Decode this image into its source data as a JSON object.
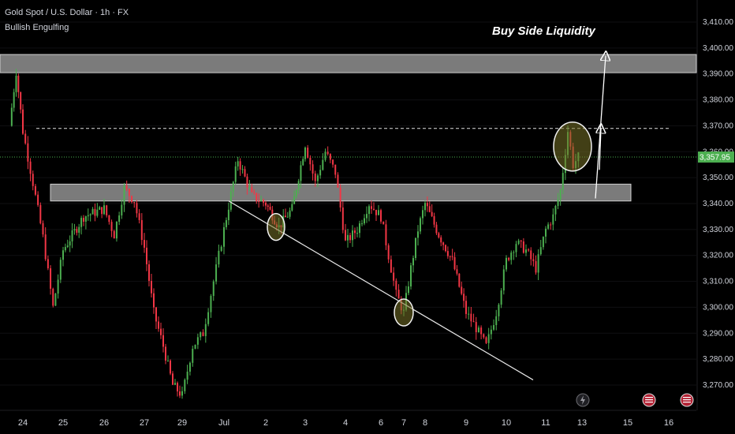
{
  "title": "Gold Spot / U.S. Dollar · 1h · FX",
  "indicator": "Bullish Engulfing",
  "annotation": "Buy Side Liquidity",
  "colors": {
    "background": "#000000",
    "up": "#4caf50",
    "down": "#f23645",
    "zone": "#9e9e9e",
    "last_price": "#4caf50"
  },
  "chart_data": {
    "type": "candlestick",
    "ylim": [
      3262,
      3414
    ],
    "yticks": [
      3270,
      3280,
      3290,
      3300,
      3310,
      3320,
      3330,
      3340,
      3350,
      3360,
      3370,
      3380,
      3390,
      3400,
      3410
    ],
    "ytick_labels": [
      "3,270.00",
      "3,280.00",
      "3,290.00",
      "3,300.00",
      "3,310.00",
      "3,320.00",
      "3,330.00",
      "3,340.00",
      "3,350.00",
      "3,360.00",
      "3,370.00",
      "3,380.00",
      "3,390.00",
      "3,400.00",
      "3,410.00"
    ],
    "x_labels": [
      "24",
      "25",
      "26",
      "27",
      "29",
      "Jul",
      "2",
      "3",
      "4",
      "6",
      "7",
      "8",
      "9",
      "10",
      "11",
      "13",
      "15",
      "16"
    ],
    "last_price": 3357.95,
    "last_price_label": "3,357.95",
    "zones": [
      {
        "from": 3390.5,
        "to": 3397.5,
        "start_label": "24",
        "extends_to_axis": true
      },
      {
        "from": 3341,
        "to": 3347.5,
        "start_label": "25",
        "end_label": "13"
      }
    ],
    "dashed_level": 3369,
    "trendline": {
      "from": {
        "label": "Jul",
        "price": 3341
      },
      "to": {
        "label": "13",
        "price": 3272
      }
    },
    "circles": [
      {
        "label": "2",
        "price": 3331
      },
      {
        "label": "7",
        "price": 3298
      },
      {
        "label": "12",
        "price": 3362
      }
    ],
    "arrows": [
      {
        "from": 3342,
        "to": 3397
      },
      {
        "from": 3353,
        "to": 3369
      }
    ],
    "price_path": [
      {
        "x": "23",
        "price": 3370
      },
      {
        "x": "23",
        "price": 3391
      },
      {
        "x": "24",
        "price": 3368
      },
      {
        "x": "24",
        "price": 3348
      },
      {
        "x": "24",
        "price": 3327
      },
      {
        "x": "24",
        "price": 3300
      },
      {
        "x": "25",
        "price": 3322
      },
      {
        "x": "25",
        "price": 3335
      },
      {
        "x": "26",
        "price": 3338
      },
      {
        "x": "26",
        "price": 3328
      },
      {
        "x": "26",
        "price": 3346
      },
      {
        "x": "26",
        "price": 3341
      },
      {
        "x": "27",
        "price": 3323
      },
      {
        "x": "27",
        "price": 3298
      },
      {
        "x": "27",
        "price": 3285
      },
      {
        "x": "27",
        "price": 3270
      },
      {
        "x": "29",
        "price": 3266
      },
      {
        "x": "29",
        "price": 3285
      },
      {
        "x": "29",
        "price": 3290
      },
      {
        "x": "29",
        "price": 3310
      },
      {
        "x": "Jul",
        "price": 3330
      },
      {
        "x": "Jul",
        "price": 3357
      },
      {
        "x": "Jul",
        "price": 3343
      },
      {
        "x": "2",
        "price": 3340
      },
      {
        "x": "2",
        "price": 3331
      },
      {
        "x": "2",
        "price": 3338
      },
      {
        "x": "3",
        "price": 3363
      },
      {
        "x": "3",
        "price": 3348
      },
      {
        "x": "3",
        "price": 3360
      },
      {
        "x": "3",
        "price": 3352
      },
      {
        "x": "4",
        "price": 3325
      },
      {
        "x": "4",
        "price": 3330
      },
      {
        "x": "4",
        "price": 3340
      },
      {
        "x": "6",
        "price": 3335
      },
      {
        "x": "6",
        "price": 3320
      },
      {
        "x": "6",
        "price": 3305
      },
      {
        "x": "7",
        "price": 3298
      },
      {
        "x": "7",
        "price": 3315
      },
      {
        "x": "7",
        "price": 3330
      },
      {
        "x": "8",
        "price": 3340
      },
      {
        "x": "8",
        "price": 3328
      },
      {
        "x": "8",
        "price": 3318
      },
      {
        "x": "9",
        "price": 3298
      },
      {
        "x": "9",
        "price": 3292
      },
      {
        "x": "9",
        "price": 3285
      },
      {
        "x": "9",
        "price": 3298
      },
      {
        "x": "10",
        "price": 3318
      },
      {
        "x": "10",
        "price": 3325
      },
      {
        "x": "10",
        "price": 3322
      },
      {
        "x": "10",
        "price": 3315
      },
      {
        "x": "11",
        "price": 3330
      },
      {
        "x": "11",
        "price": 3335
      },
      {
        "x": "11",
        "price": 3345
      },
      {
        "x": "12",
        "price": 3368
      },
      {
        "x": "12",
        "price": 3355
      },
      {
        "x": "12",
        "price": 3358
      }
    ]
  }
}
